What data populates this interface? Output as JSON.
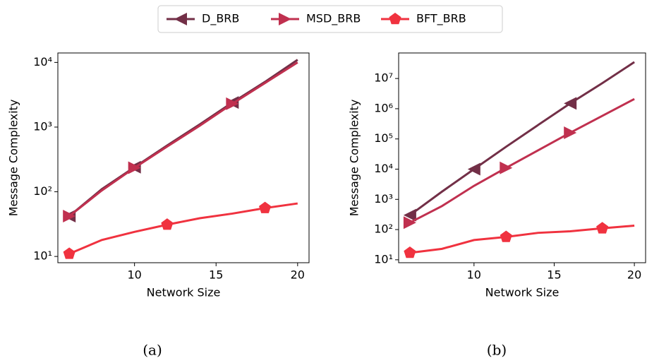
{
  "chart_data": [
    {
      "type": "line",
      "caption": "(a)",
      "xlabel": "Network Size",
      "ylabel": "Message Complexity",
      "log_y": true,
      "legend": "top",
      "x": [
        6,
        8,
        10,
        12,
        14,
        16,
        18,
        20
      ],
      "xlim": [
        5.3,
        20.7
      ],
      "xticks": [
        10,
        15,
        20
      ],
      "ylim": [
        8,
        14000
      ],
      "yticks": [
        {
          "value": 10,
          "label": "10¹"
        },
        {
          "value": 100,
          "label": "10²"
        },
        {
          "value": 1000,
          "label": "10³"
        },
        {
          "value": 10000,
          "label": "10⁴"
        }
      ],
      "series": [
        {
          "name": "D_BRB",
          "color": "#722f47",
          "marker": "triangle-left",
          "markevery": [
            0,
            2,
            5
          ],
          "values": [
            42,
            110,
            240,
            520,
            1100,
            2400,
            5000,
            11000
          ]
        },
        {
          "name": "MSD_BRB",
          "color": "#c0304f",
          "marker": "triangle-right",
          "markevery": [
            0,
            2,
            5
          ],
          "values": [
            42,
            105,
            235,
            500,
            1050,
            2300,
            4800,
            10000
          ]
        },
        {
          "name": "BFT_BRB",
          "color": "#f0323f",
          "marker": "pentagon",
          "markevery": [
            0,
            3,
            6
          ],
          "values": [
            11,
            18,
            24,
            31,
            39,
            46,
            56,
            66
          ]
        }
      ]
    },
    {
      "type": "line",
      "caption": "(b)",
      "xlabel": "Network Size",
      "ylabel": "Message Complexity",
      "log_y": true,
      "x": [
        6,
        8,
        10,
        12,
        14,
        16,
        18,
        20
      ],
      "xlim": [
        5.3,
        20.7
      ],
      "xticks": [
        10,
        15,
        20
      ],
      "ylim": [
        8,
        70000000
      ],
      "yticks": [
        {
          "value": 10,
          "label": "10¹"
        },
        {
          "value": 100,
          "label": "10²"
        },
        {
          "value": 1000,
          "label": "10³"
        },
        {
          "value": 10000,
          "label": "10⁴"
        },
        {
          "value": 100000,
          "label": "10⁵"
        },
        {
          "value": 1000000,
          "label": "10⁶"
        },
        {
          "value": 10000000,
          "label": "10⁷"
        }
      ],
      "series": [
        {
          "name": "D_BRB",
          "color": "#722f47",
          "marker": "triangle-left",
          "markevery": [
            0,
            2,
            5
          ],
          "values": [
            300,
            1800,
            10000,
            55000,
            290000,
            1500000,
            7000000,
            35000000
          ]
        },
        {
          "name": "MSD_BRB",
          "color": "#c0304f",
          "marker": "triangle-right",
          "markevery": [
            0,
            3,
            5
          ],
          "values": [
            170,
            600,
            2800,
            11000,
            42000,
            160000,
            580000,
            2100000
          ]
        },
        {
          "name": "BFT_BRB",
          "color": "#f0323f",
          "marker": "pentagon",
          "markevery": [
            0,
            3,
            6
          ],
          "values": [
            17,
            23,
            45,
            57,
            78,
            88,
            110,
            135
          ]
        }
      ]
    }
  ]
}
